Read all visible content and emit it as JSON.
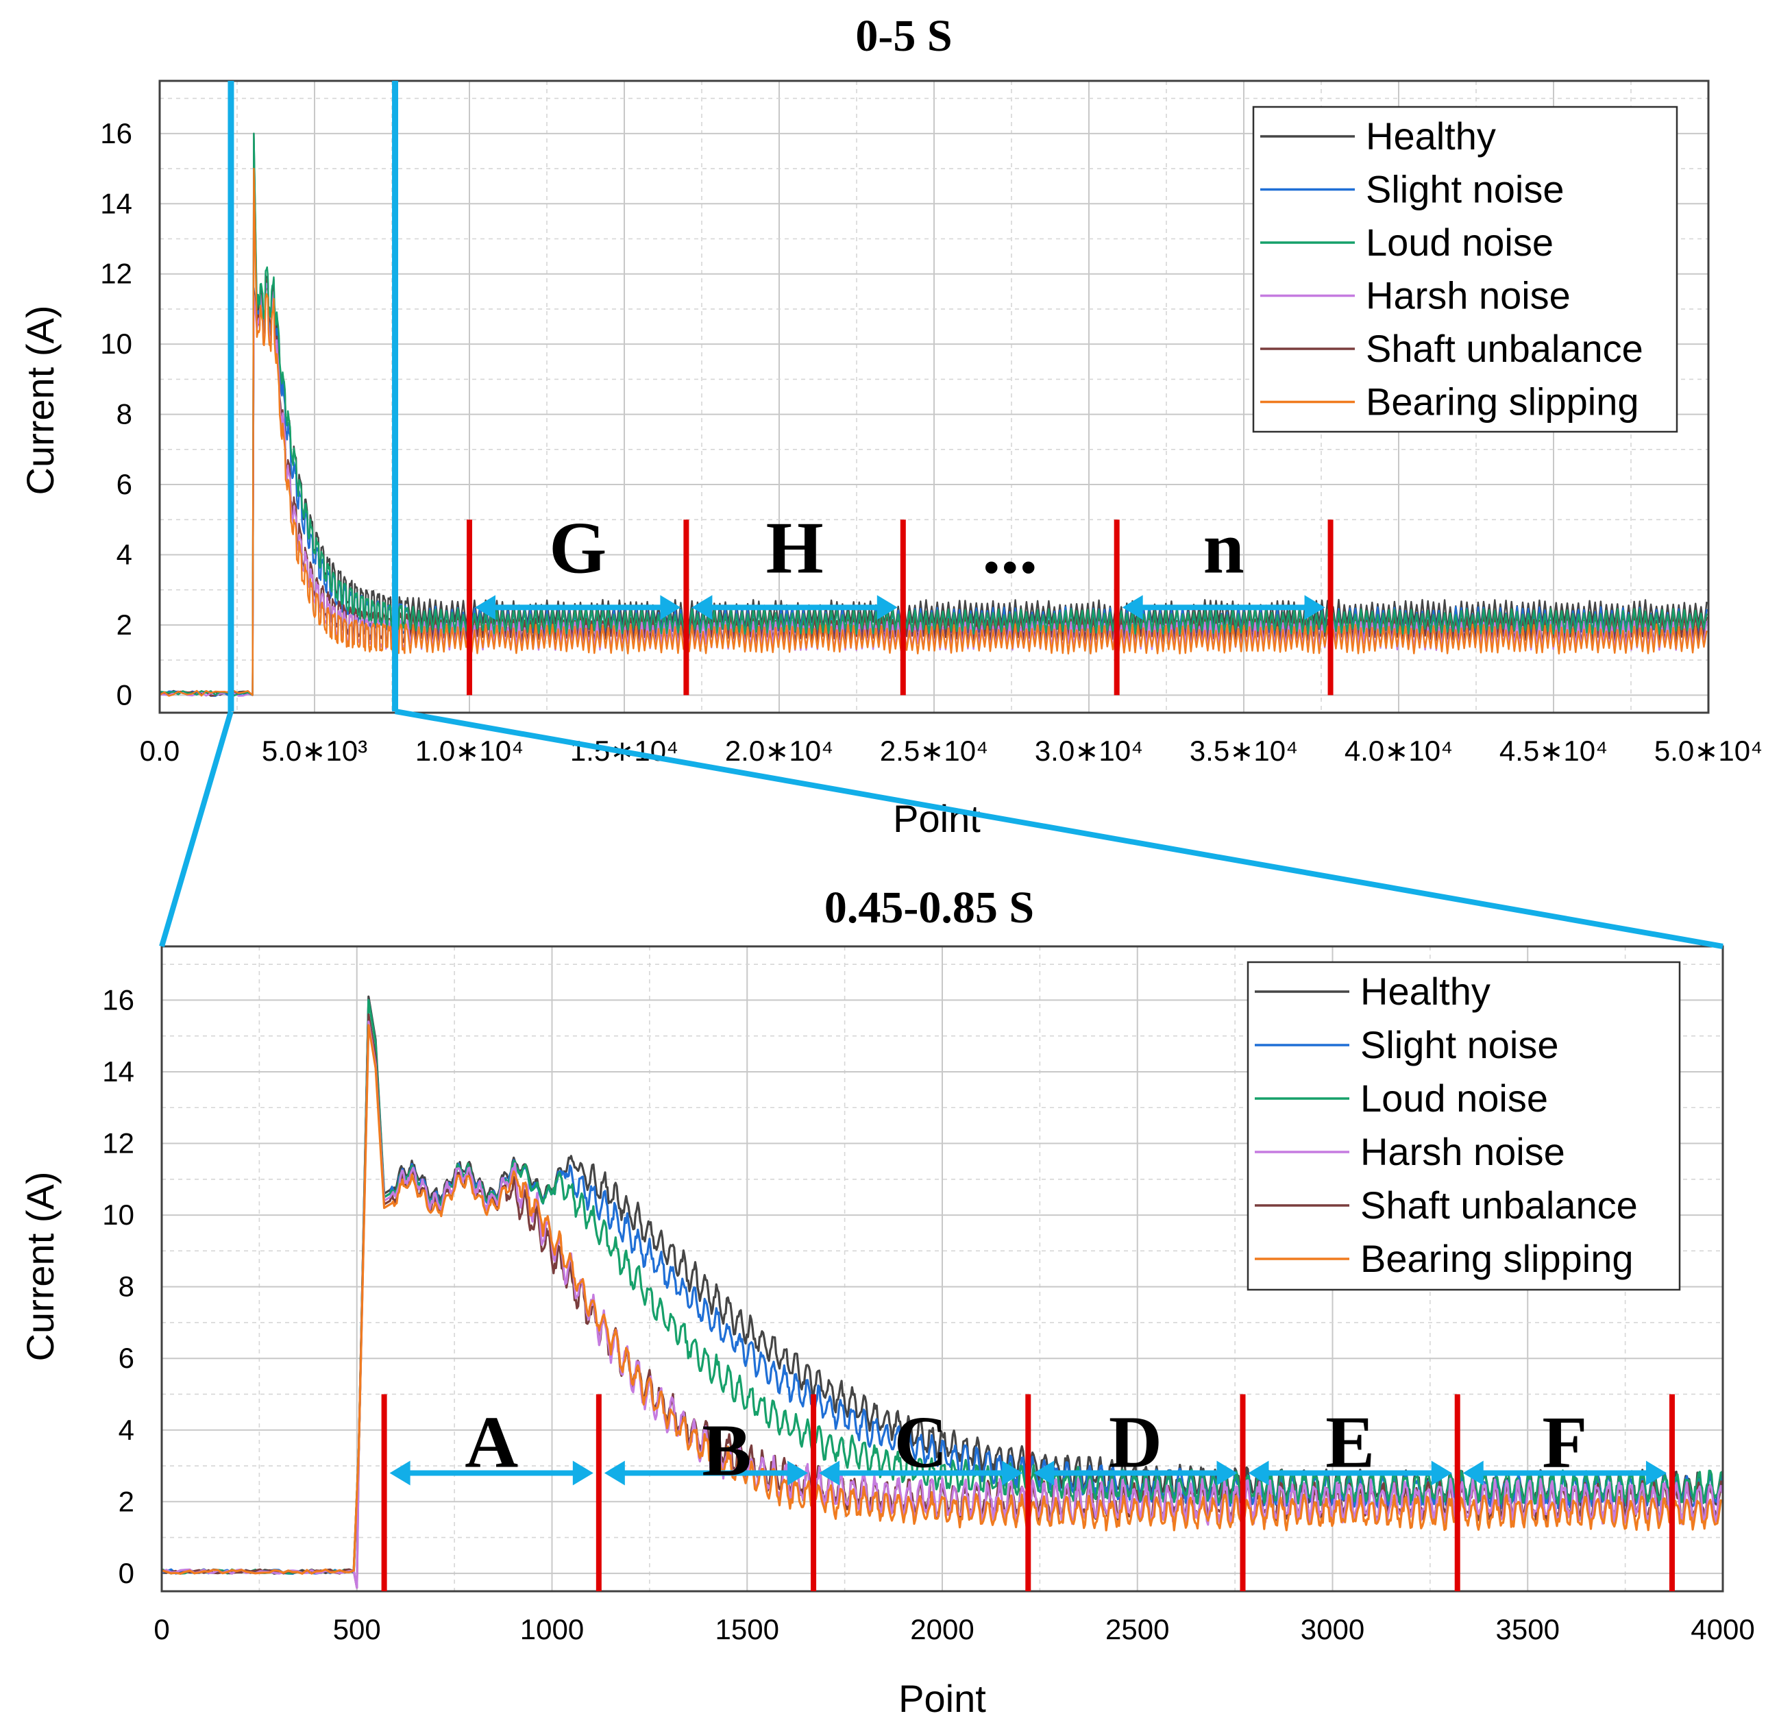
{
  "colors": {
    "healthy": "#454545",
    "slight_noise": "#1f6fd6",
    "loud_noise": "#16a06a",
    "harsh_noise": "#c57be0",
    "shaft_unbalance": "#7a3d3d",
    "bearing_slipping": "#f07b1f",
    "segment_line": "#e00000",
    "segment_arrow": "#12aee8",
    "zoom_line": "#12aee8"
  },
  "legend": {
    "items": [
      {
        "label": "Healthy",
        "color": "#454545"
      },
      {
        "label": "Slight noise",
        "color": "#1f6fd6"
      },
      {
        "label": "Loud noise",
        "color": "#16a06a"
      },
      {
        "label": "Harsh noise",
        "color": "#c57be0"
      },
      {
        "label": "Shaft unbalance",
        "color": "#7a3d3d"
      },
      {
        "label": "Bearing slipping",
        "color": "#f07b1f"
      }
    ]
  },
  "chart_data": [
    {
      "type": "line",
      "title": "0-5 S",
      "xlabel": "Point",
      "ylabel": "Current (A)",
      "xlim": [
        0,
        50000
      ],
      "ylim": [
        -0.5,
        17.5
      ],
      "xticks": [
        {
          "value": 0,
          "label": "0.0"
        },
        {
          "value": 5000,
          "label": "5.0∗10³"
        },
        {
          "value": 10000,
          "label": "1.0∗10⁴"
        },
        {
          "value": 15000,
          "label": "1.5∗10⁴"
        },
        {
          "value": 20000,
          "label": "2.0∗10⁴"
        },
        {
          "value": 25000,
          "label": "2.5∗10⁴"
        },
        {
          "value": 30000,
          "label": "3.0∗10⁴"
        },
        {
          "value": 35000,
          "label": "3.5∗10⁴"
        },
        {
          "value": 40000,
          "label": "4.0∗10⁴"
        },
        {
          "value": 45000,
          "label": "4.5∗10⁴"
        },
        {
          "value": 50000,
          "label": "5.0∗10⁴"
        }
      ],
      "yticks": [
        "0",
        "2",
        "4",
        "6",
        "8",
        "10",
        "12",
        "14",
        "16"
      ],
      "grid": true,
      "legend_position": "top-right",
      "series": [
        {
          "name": "Healthy",
          "onset": 3000,
          "peak": 11.2,
          "steady": 2.3,
          "decay": 900,
          "ripple": 0.35,
          "color": "#454545"
        },
        {
          "name": "Slight noise",
          "onset": 3000,
          "peak": 11.0,
          "steady": 2.1,
          "decay": 850,
          "ripple": 0.35,
          "color": "#1f6fd6"
        },
        {
          "name": "Loud noise",
          "onset": 3000,
          "peak": 11.4,
          "steady": 2.1,
          "decay": 900,
          "ripple": 0.3,
          "color": "#16a06a"
        },
        {
          "name": "Harsh noise",
          "onset": 3000,
          "peak": 10.8,
          "steady": 1.7,
          "decay": 650,
          "ripple": 0.35,
          "color": "#c57be0"
        },
        {
          "name": "Shaft unbalance",
          "onset": 3000,
          "peak": 10.9,
          "steady": 1.9,
          "decay": 650,
          "ripple": 0.35,
          "color": "#7a3d3d"
        },
        {
          "name": "Bearing slipping",
          "onset": 3000,
          "peak": 10.6,
          "steady": 1.6,
          "decay": 600,
          "ripple": 0.35,
          "color": "#f07b1f"
        }
      ],
      "spike_peak": 16.0,
      "zoom_window": [
        2300,
        7600
      ],
      "segments": {
        "boundaries": [
          10000,
          17000,
          24000,
          30900,
          37800
        ],
        "labels": [
          "G",
          "H",
          "...",
          "n"
        ],
        "label_y": 4.2,
        "arrow_y": 2.5,
        "arrows": [
          [
            10000,
            17000
          ],
          [
            17000,
            24000
          ],
          [
            30900,
            37800
          ]
        ],
        "line_range": [
          0,
          5
        ]
      }
    },
    {
      "type": "line",
      "title": "0.45-0.85 S",
      "xlabel": "Point",
      "ylabel": "Current (A)",
      "xlim": [
        0,
        4000
      ],
      "ylim": [
        -0.5,
        17.5
      ],
      "xticks": [
        {
          "value": 0,
          "label": "0"
        },
        {
          "value": 500,
          "label": "500"
        },
        {
          "value": 1000,
          "label": "1000"
        },
        {
          "value": 1500,
          "label": "1500"
        },
        {
          "value": 2000,
          "label": "2000"
        },
        {
          "value": 2500,
          "label": "2500"
        },
        {
          "value": 3000,
          "label": "3000"
        },
        {
          "value": 3500,
          "label": "3500"
        },
        {
          "value": 4000,
          "label": "4000"
        }
      ],
      "yticks": [
        "0",
        "2",
        "4",
        "6",
        "8",
        "10",
        "12",
        "14",
        "16"
      ],
      "grid": true,
      "legend_position": "top-right",
      "series": [
        {
          "name": "Healthy",
          "peak": 16.1,
          "plateau": 10.9,
          "plateau_end": 1080,
          "steady": 2.4,
          "tau": 560,
          "ripple": 0.35,
          "color": "#454545"
        },
        {
          "name": "Slight noise",
          "peak": 16.0,
          "plateau": 10.8,
          "plateau_end": 1040,
          "steady": 2.3,
          "tau": 540,
          "ripple": 0.35,
          "color": "#1f6fd6"
        },
        {
          "name": "Loud noise",
          "peak": 16.0,
          "plateau": 10.8,
          "plateau_end": 1000,
          "steady": 2.4,
          "tau": 430,
          "ripple": 0.35,
          "color": "#16a06a"
        },
        {
          "name": "Harsh noise",
          "peak": 15.4,
          "plateau": 10.7,
          "plateau_end": 900,
          "steady": 2.0,
          "tau": 330,
          "ripple": 0.45,
          "color": "#c57be0"
        },
        {
          "name": "Shaft unbalance",
          "peak": 15.6,
          "plateau": 10.6,
          "plateau_end": 880,
          "steady": 2.0,
          "tau": 360,
          "ripple": 0.4,
          "color": "#7a3d3d"
        },
        {
          "name": "Bearing slipping",
          "peak": 15.3,
          "plateau": 10.5,
          "plateau_end": 920,
          "steady": 1.7,
          "tau": 330,
          "ripple": 0.35,
          "color": "#f07b1f"
        }
      ],
      "onset": 495,
      "peak_at": 530,
      "segments": {
        "boundaries": [
          570,
          1120,
          1670,
          2220,
          2770,
          3320,
          3870
        ],
        "labels": [
          "A",
          "B",
          "C",
          "D",
          "E",
          "F"
        ],
        "label_y": 3.7,
        "arrow_y": 2.8,
        "line_range": [
          -0.5,
          5
        ]
      }
    }
  ]
}
